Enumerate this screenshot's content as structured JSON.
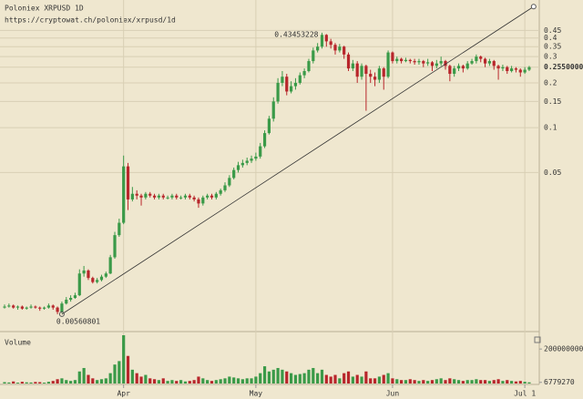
{
  "chart_data": {
    "type": "candlestick",
    "title": "Poloniex XRPUSD 1D",
    "subtitle": "https://cryptowat.ch/poloniex/xrpusd/1d",
    "volume_title": "Volume",
    "log_scale": true,
    "grid": true,
    "up_color": "#3a9a48",
    "down_color": "#b8262b",
    "categories": [
      null,
      null,
      null,
      null,
      null,
      null,
      null,
      null,
      null,
      null,
      null,
      null,
      null,
      null,
      null,
      null,
      null,
      null,
      null,
      null,
      null,
      null,
      null,
      null,
      null,
      null,
      null,
      "Apr",
      null,
      null,
      null,
      null,
      null,
      null,
      null,
      null,
      null,
      null,
      null,
      null,
      null,
      null,
      null,
      null,
      null,
      null,
      null,
      null,
      null,
      null,
      null,
      null,
      null,
      null,
      null,
      null,
      null,
      "May",
      null,
      null,
      null,
      null,
      null,
      null,
      null,
      null,
      null,
      null,
      null,
      null,
      null,
      null,
      null,
      null,
      null,
      null,
      null,
      null,
      null,
      null,
      null,
      null,
      null,
      null,
      null,
      null,
      null,
      null,
      "Jun",
      null,
      null,
      null,
      null,
      null,
      null,
      null,
      null,
      null,
      null,
      null,
      null,
      null,
      null,
      null,
      null,
      null,
      null,
      null,
      null,
      null,
      null,
      null,
      null,
      null,
      null,
      null,
      null,
      null,
      "Jul 1",
      null
    ],
    "open": [
      0.0062,
      0.0063,
      0.0064,
      0.0062,
      0.0063,
      0.0061,
      0.0062,
      0.0063,
      0.0062,
      0.0061,
      0.0062,
      0.0064,
      0.0062,
      0.0058,
      0.0066,
      0.007,
      0.0072,
      0.0075,
      0.0105,
      0.011,
      0.0098,
      0.0092,
      0.0095,
      0.01,
      0.0105,
      0.0135,
      0.019,
      0.023,
      0.055,
      0.033,
      0.036,
      0.035,
      0.034,
      0.036,
      0.035,
      0.034,
      0.035,
      0.034,
      0.034,
      0.035,
      0.034,
      0.034,
      0.035,
      0.034,
      0.033,
      0.031,
      0.034,
      0.035,
      0.034,
      0.036,
      0.038,
      0.041,
      0.046,
      0.052,
      0.056,
      0.058,
      0.06,
      0.062,
      0.064,
      0.075,
      0.092,
      0.115,
      0.15,
      0.2,
      0.22,
      0.175,
      0.19,
      0.2,
      0.225,
      0.24,
      0.28,
      0.33,
      0.35,
      0.42,
      0.38,
      0.36,
      0.33,
      0.35,
      0.31,
      0.25,
      0.27,
      0.22,
      0.26,
      0.23,
      0.22,
      0.21,
      0.25,
      0.22,
      0.32,
      0.28,
      0.29,
      0.28,
      0.285,
      0.28,
      0.275,
      0.28,
      0.27,
      0.275,
      0.26,
      0.27,
      0.28,
      0.26,
      0.23,
      0.25,
      0.26,
      0.25,
      0.27,
      0.28,
      0.3,
      0.29,
      0.27,
      0.28,
      0.26,
      0.25,
      0.255,
      0.24,
      0.25,
      0.245,
      0.235,
      0.245
    ],
    "high": [
      0.0065,
      0.0066,
      0.0065,
      0.0064,
      0.0064,
      0.0063,
      0.0065,
      0.0064,
      0.0063,
      0.0063,
      0.0066,
      0.0065,
      0.0063,
      0.0068,
      0.0073,
      0.0075,
      0.0078,
      0.0112,
      0.0118,
      0.0112,
      0.01,
      0.0098,
      0.0103,
      0.0108,
      0.014,
      0.02,
      0.0245,
      0.065,
      0.058,
      0.04,
      0.038,
      0.036,
      0.037,
      0.037,
      0.036,
      0.036,
      0.036,
      0.035,
      0.036,
      0.036,
      0.035,
      0.036,
      0.036,
      0.035,
      0.034,
      0.035,
      0.036,
      0.036,
      0.037,
      0.039,
      0.043,
      0.048,
      0.054,
      0.059,
      0.061,
      0.063,
      0.065,
      0.068,
      0.079,
      0.096,
      0.12,
      0.16,
      0.215,
      0.24,
      0.23,
      0.205,
      0.215,
      0.235,
      0.25,
      0.29,
      0.345,
      0.37,
      0.4345,
      0.425,
      0.395,
      0.37,
      0.365,
      0.355,
      0.32,
      0.285,
      0.28,
      0.27,
      0.265,
      0.245,
      0.235,
      0.26,
      0.255,
      0.33,
      0.325,
      0.3,
      0.295,
      0.295,
      0.29,
      0.29,
      0.29,
      0.285,
      0.29,
      0.28,
      0.285,
      0.3,
      0.285,
      0.265,
      0.26,
      0.27,
      0.265,
      0.28,
      0.29,
      0.31,
      0.305,
      0.295,
      0.29,
      0.285,
      0.265,
      0.265,
      0.26,
      0.26,
      0.255,
      0.25,
      0.255,
      0.26
    ],
    "low": [
      0.0061,
      0.0062,
      0.0061,
      0.006,
      0.006,
      0.006,
      0.0061,
      0.0061,
      0.0059,
      0.006,
      0.0061,
      0.006,
      0.0056,
      0.0057,
      0.0065,
      0.0068,
      0.0071,
      0.0074,
      0.01,
      0.0095,
      0.009,
      0.009,
      0.0093,
      0.0098,
      0.0104,
      0.0132,
      0.0185,
      0.0225,
      0.028,
      0.032,
      0.033,
      0.03,
      0.033,
      0.034,
      0.033,
      0.033,
      0.033,
      0.033,
      0.033,
      0.033,
      0.033,
      0.033,
      0.033,
      0.032,
      0.029,
      0.03,
      0.033,
      0.033,
      0.033,
      0.035,
      0.037,
      0.04,
      0.045,
      0.05,
      0.054,
      0.056,
      0.058,
      0.06,
      0.062,
      0.073,
      0.09,
      0.11,
      0.145,
      0.19,
      0.165,
      0.17,
      0.18,
      0.195,
      0.215,
      0.235,
      0.27,
      0.32,
      0.34,
      0.35,
      0.34,
      0.31,
      0.32,
      0.29,
      0.24,
      0.24,
      0.2,
      0.21,
      0.13,
      0.2,
      0.19,
      0.2,
      0.18,
      0.215,
      0.27,
      0.27,
      0.27,
      0.275,
      0.27,
      0.265,
      0.265,
      0.255,
      0.26,
      0.24,
      0.25,
      0.26,
      0.245,
      0.205,
      0.22,
      0.24,
      0.235,
      0.245,
      0.265,
      0.27,
      0.275,
      0.255,
      0.26,
      0.245,
      0.21,
      0.24,
      0.23,
      0.235,
      0.235,
      0.22,
      0.23,
      0.24
    ],
    "close": [
      0.0063,
      0.0064,
      0.0062,
      0.0063,
      0.0061,
      0.0062,
      0.0063,
      0.0062,
      0.0061,
      0.0062,
      0.0064,
      0.0062,
      0.0058,
      0.0066,
      0.007,
      0.0072,
      0.0075,
      0.0105,
      0.011,
      0.0098,
      0.0092,
      0.0095,
      0.01,
      0.0105,
      0.0135,
      0.019,
      0.023,
      0.055,
      0.033,
      0.036,
      0.035,
      0.034,
      0.036,
      0.035,
      0.034,
      0.035,
      0.034,
      0.034,
      0.035,
      0.034,
      0.034,
      0.035,
      0.034,
      0.033,
      0.031,
      0.034,
      0.035,
      0.034,
      0.036,
      0.038,
      0.041,
      0.046,
      0.052,
      0.056,
      0.058,
      0.06,
      0.062,
      0.064,
      0.075,
      0.092,
      0.115,
      0.15,
      0.2,
      0.22,
      0.175,
      0.19,
      0.2,
      0.225,
      0.24,
      0.28,
      0.33,
      0.35,
      0.42,
      0.38,
      0.36,
      0.33,
      0.35,
      0.31,
      0.25,
      0.27,
      0.22,
      0.26,
      0.23,
      0.22,
      0.21,
      0.25,
      0.22,
      0.32,
      0.28,
      0.29,
      0.28,
      0.285,
      0.28,
      0.275,
      0.28,
      0.27,
      0.275,
      0.26,
      0.27,
      0.28,
      0.26,
      0.23,
      0.25,
      0.26,
      0.25,
      0.27,
      0.28,
      0.3,
      0.29,
      0.27,
      0.28,
      0.26,
      0.25,
      0.255,
      0.24,
      0.25,
      0.245,
      0.235,
      0.245,
      0.255
    ],
    "volume": [
      8000000,
      6000000,
      12000000,
      5000000,
      10000000,
      7000000,
      6000000,
      9000000,
      8000000,
      5000000,
      10000000,
      15000000,
      25000000,
      30000000,
      20000000,
      15000000,
      20000000,
      70000000,
      90000000,
      50000000,
      30000000,
      20000000,
      25000000,
      30000000,
      60000000,
      110000000,
      130000000,
      280000000,
      160000000,
      80000000,
      60000000,
      40000000,
      50000000,
      30000000,
      25000000,
      20000000,
      30000000,
      15000000,
      20000000,
      15000000,
      20000000,
      12000000,
      15000000,
      20000000,
      40000000,
      30000000,
      20000000,
      15000000,
      20000000,
      25000000,
      30000000,
      40000000,
      35000000,
      30000000,
      25000000,
      30000000,
      30000000,
      40000000,
      60000000,
      100000000,
      70000000,
      80000000,
      90000000,
      80000000,
      70000000,
      60000000,
      50000000,
      55000000,
      60000000,
      80000000,
      90000000,
      60000000,
      80000000,
      50000000,
      40000000,
      50000000,
      30000000,
      60000000,
      70000000,
      40000000,
      50000000,
      40000000,
      70000000,
      30000000,
      30000000,
      40000000,
      50000000,
      60000000,
      30000000,
      25000000,
      20000000,
      20000000,
      25000000,
      20000000,
      15000000,
      20000000,
      15000000,
      20000000,
      25000000,
      30000000,
      20000000,
      30000000,
      25000000,
      20000000,
      15000000,
      20000000,
      20000000,
      25000000,
      20000000,
      20000000,
      15000000,
      20000000,
      25000000,
      15000000,
      20000000,
      15000000,
      12000000,
      15000000,
      10000000,
      6779270
    ],
    "ylim": [
      0.0044,
      0.72
    ],
    "yticks": [
      0.45,
      0.4,
      0.35,
      0.3,
      {
        "value": 0.255,
        "label": "0.2550000"
      },
      0.2,
      0.15,
      0.1,
      0.05
    ],
    "volume_ylim": [
      0,
      280000000
    ],
    "volume_yticks": [
      200000000,
      6779270
    ],
    "trendline": {
      "x": [
        13,
        120
      ],
      "values": [
        0.0056,
        0.65
      ]
    },
    "annotations": [
      "0.43453228",
      "0.00560801"
    ]
  }
}
